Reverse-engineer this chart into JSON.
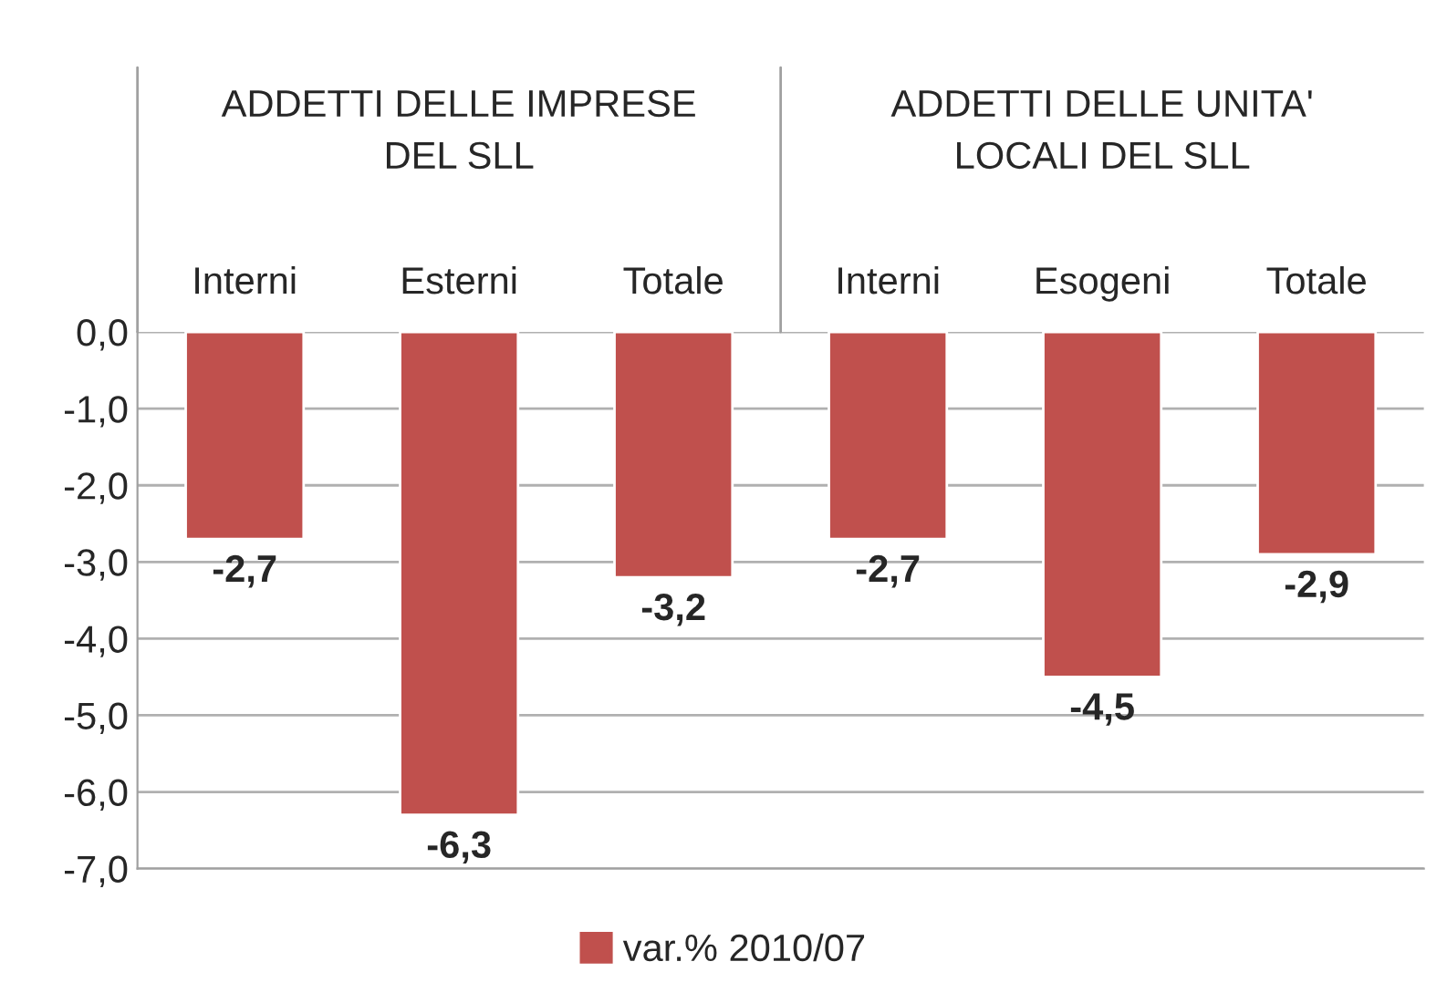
{
  "chart_data": {
    "type": "bar",
    "categories": [
      "Interni",
      "Esterni",
      "Totale",
      "Interni",
      "Esogeni",
      "Totale"
    ],
    "series": [
      {
        "name": "var.% 2010/07",
        "color": "#c0504d",
        "values": [
          -2.7,
          -6.3,
          -3.2,
          -2.7,
          -4.5,
          -2.9
        ],
        "value_labels": [
          "-2,7",
          "-6,3",
          "-3,2",
          "-2,7",
          "-4,5",
          "-2,9"
        ]
      }
    ],
    "annotations": [
      "ADDETTI DELLE IMPRESE\nDEL SLL",
      "ADDETTI DELLE UNITA'\nLOCALI DEL SLL"
    ],
    "ylim": [
      -7,
      0
    ],
    "yticks": [
      {
        "value": 0,
        "label": "0,0"
      },
      {
        "value": -1,
        "label": "-1,0"
      },
      {
        "value": -2,
        "label": "-2,0"
      },
      {
        "value": -3,
        "label": "-3,0"
      },
      {
        "value": -4,
        "label": "-4,0"
      },
      {
        "value": -5,
        "label": "-5,0"
      },
      {
        "value": -6,
        "label": "-6,0"
      },
      {
        "value": -7,
        "label": "-7,0"
      }
    ],
    "grid": "y",
    "legend": "bottom"
  }
}
